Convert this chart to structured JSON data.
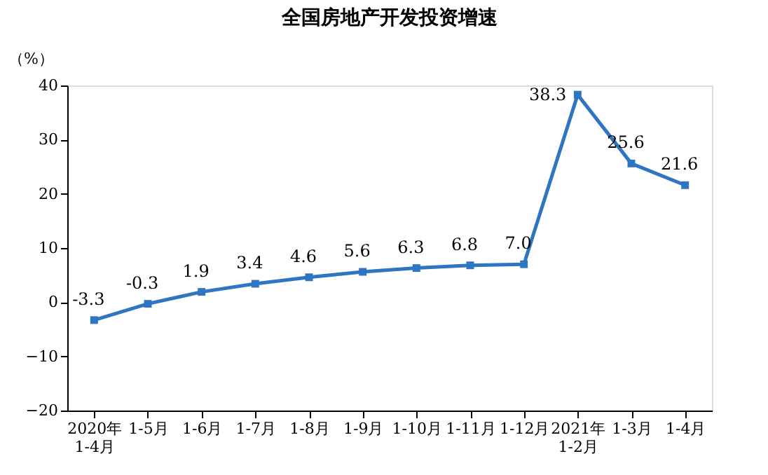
{
  "chart_data": {
    "type": "line",
    "title": "全国房地产开发投资增速",
    "ylabel": "（%）",
    "categories": [
      "2020年\n1-4月",
      "1-5月",
      "1-6月",
      "1-7月",
      "1-8月",
      "1-9月",
      "1-10月",
      "1-11月",
      "1-12月",
      "2021年\n1-2月",
      "1-3月",
      "1-4月"
    ],
    "series": [
      {
        "color": "#2e75c2",
        "values": [
          -3.3,
          -0.3,
          1.9,
          3.4,
          4.6,
          5.6,
          6.3,
          6.8,
          7.0,
          38.3,
          25.6,
          21.6
        ],
        "value_labels": [
          "-3.3",
          "-0.3",
          "1.9",
          "3.4",
          "4.6",
          "5.6",
          "6.3",
          "6.8",
          "7.0",
          "38.3",
          "25.6",
          "21.6"
        ]
      }
    ],
    "ylim": [
      -20,
      40
    ],
    "yticks": [
      -20,
      -10,
      0,
      10,
      20,
      30,
      40
    ],
    "grid": false,
    "marker": "square",
    "line_style": "solid"
  }
}
